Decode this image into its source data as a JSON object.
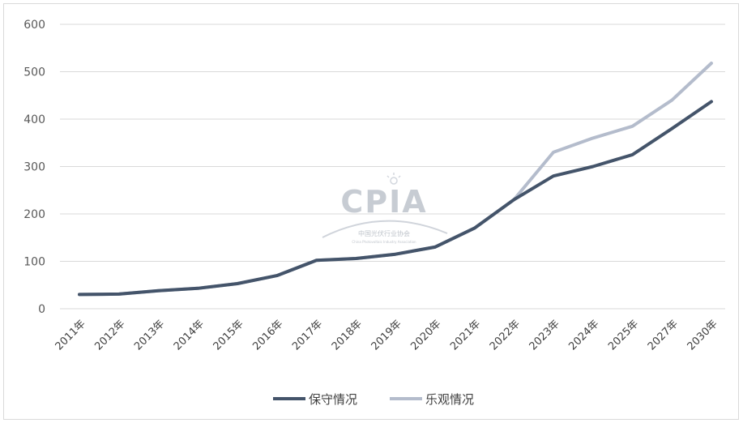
{
  "chart_data": {
    "type": "line",
    "categories": [
      "2011年",
      "2012年",
      "2013年",
      "2014年",
      "2015年",
      "2016年",
      "2017年",
      "2018年",
      "2019年",
      "2020年",
      "2021年",
      "2022年",
      "2023年",
      "2024年",
      "2025年",
      "2027年",
      "2030年"
    ],
    "series": [
      {
        "name": "保守情况",
        "color": "#44546a",
        "values": [
          30,
          31,
          38,
          43,
          53,
          70,
          102,
          106,
          115,
          130,
          170,
          230,
          280,
          300,
          325,
          380,
          437
        ]
      },
      {
        "name": "乐观情况",
        "color": "#b4bccc",
        "values": [
          30,
          31,
          38,
          43,
          53,
          70,
          102,
          106,
          115,
          130,
          170,
          230,
          330,
          360,
          385,
          440,
          518
        ]
      }
    ],
    "yticks": [
      0,
      100,
      200,
      300,
      400,
      500,
      600
    ],
    "ylim": [
      0,
      600
    ],
    "grid": true,
    "legend": "bottom-center",
    "watermark": {
      "logo_text": "CPIA",
      "cn_text": "中国光伏行业协会",
      "en_text": "China Photovoltaic Industry Association"
    }
  }
}
